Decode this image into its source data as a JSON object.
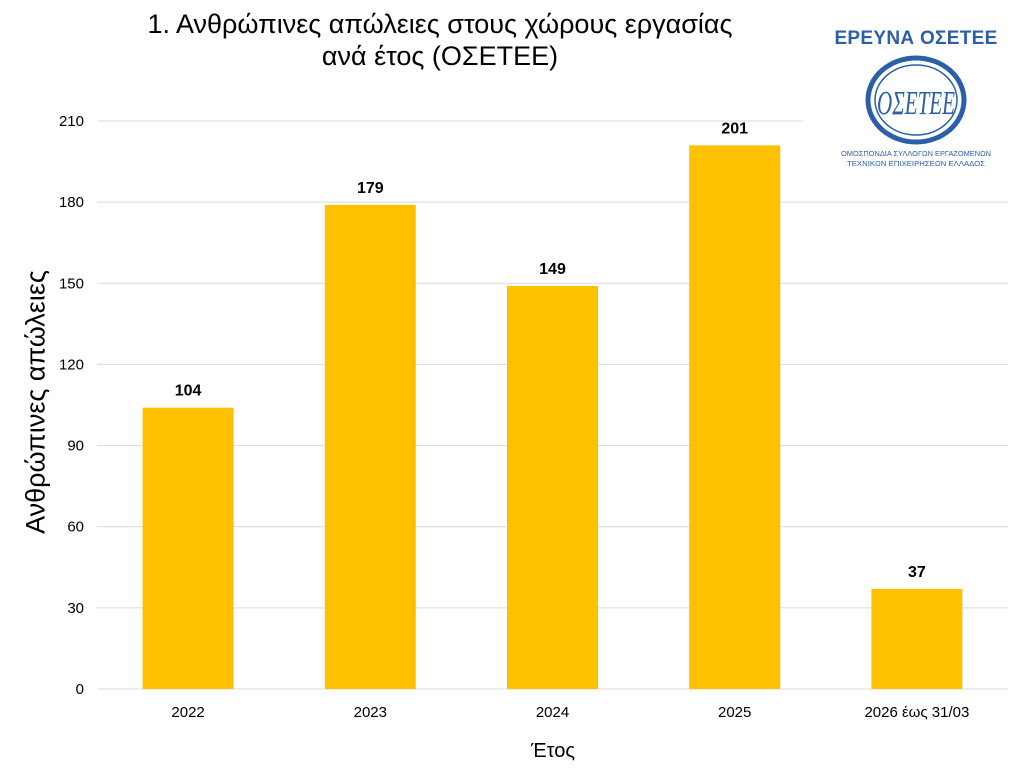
{
  "chart_data": {
    "type": "bar",
    "title_lines": [
      "1. Ανθρώπινες απώλειες στους χώρους εργασίας",
      "ανά έτος (ΟΣΕΤΕΕ)"
    ],
    "xlabel": "Έτος",
    "ylabel": "Ανθρώπινες απώλειες",
    "categories": [
      "2022",
      "2023",
      "2024",
      "2025",
      "2026 έως 31/03"
    ],
    "values": [
      104,
      179,
      149,
      201,
      37
    ],
    "ylim": [
      0,
      210
    ],
    "yticks": [
      0,
      30,
      60,
      90,
      120,
      150,
      180,
      210
    ],
    "grid": true,
    "bar_color": "#FFC000",
    "grid_color": "#D9D9D9"
  },
  "logo": {
    "heading": "ΕΡΕΥΝΑ ΟΣΕΤΕΕ",
    "emblem_text": "ΟΣΕΤΕΕ",
    "caption_line1": "ΟΜΟΣΠΟΝΔΙΑ ΣΥΛΛΟΓΩΝ ΕΡΓΑΖΟΜΕΝΩΝ",
    "caption_line2": "ΤΕΧΝΙΚΩΝ ΕΠΙΧΕΙΡΗΣΕΩΝ ΕΛΛΑΔΟΣ",
    "color": "#2B5FA8"
  }
}
